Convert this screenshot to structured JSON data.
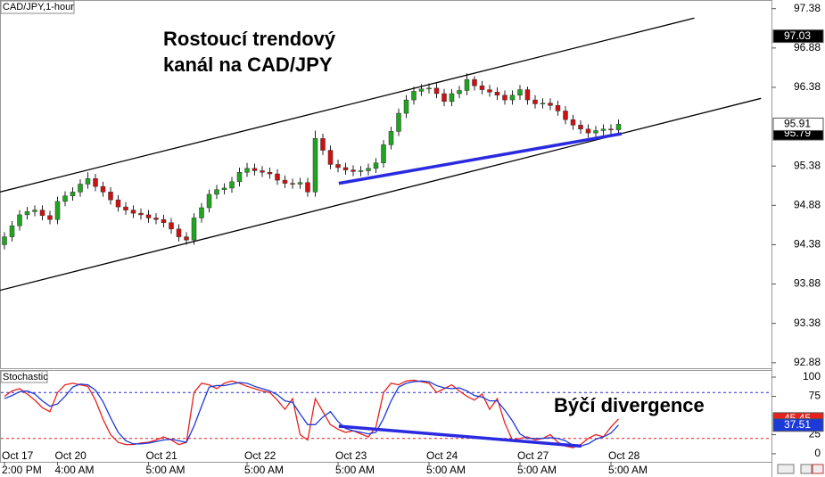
{
  "chart_data": [
    {
      "type": "candlestick",
      "title": "CAD/JPY,1-hour",
      "annotation_lines": [
        "Rostoucí trendový",
        "kanál na CAD/JPY"
      ],
      "categories": [
        "Oct 17",
        null,
        null,
        null,
        null,
        null,
        null,
        "Oct 20",
        null,
        null,
        null,
        null,
        null,
        null,
        null,
        null,
        null,
        null,
        null,
        "Oct 21",
        null,
        null,
        null,
        null,
        null,
        null,
        null,
        null,
        null,
        null,
        null,
        null,
        "Oct 22",
        null,
        null,
        null,
        null,
        null,
        null,
        null,
        null,
        null,
        null,
        null,
        "Oct 23",
        null,
        null,
        null,
        null,
        null,
        null,
        null,
        null,
        null,
        null,
        null,
        "Oct 24",
        null,
        null,
        null,
        null,
        null,
        null,
        null,
        null,
        null,
        null,
        null,
        "Oct 27",
        null,
        null,
        null,
        null,
        null,
        null,
        null,
        null,
        null,
        null,
        null,
        "Oct 28",
        null
      ],
      "category_times": [
        "2:00 PM",
        null,
        null,
        null,
        null,
        null,
        null,
        "4:00 AM",
        null,
        null,
        null,
        null,
        null,
        null,
        null,
        null,
        null,
        null,
        null,
        "5:00 AM",
        null,
        null,
        null,
        null,
        null,
        null,
        null,
        null,
        null,
        null,
        null,
        null,
        "5:00 AM",
        null,
        null,
        null,
        null,
        null,
        null,
        null,
        null,
        null,
        null,
        null,
        "5:00 AM",
        null,
        null,
        null,
        null,
        null,
        null,
        null,
        null,
        null,
        null,
        null,
        "5:00 AM",
        null,
        null,
        null,
        null,
        null,
        null,
        null,
        null,
        null,
        null,
        null,
        "5:00 AM",
        null,
        null,
        null,
        null,
        null,
        null,
        null,
        null,
        null,
        null,
        null,
        "5:00 AM",
        null
      ],
      "open": [
        94.38,
        94.48,
        94.62,
        94.76,
        94.8,
        94.82,
        94.75,
        94.7,
        94.93,
        95.0,
        95.05,
        95.15,
        95.22,
        95.12,
        95.05,
        94.95,
        94.86,
        94.82,
        94.78,
        94.76,
        94.72,
        94.7,
        94.66,
        94.58,
        94.48,
        94.44,
        94.72,
        94.85,
        95.02,
        95.08,
        95.1,
        95.18,
        95.3,
        95.35,
        95.32,
        95.3,
        95.28,
        95.2,
        95.16,
        95.15,
        95.17,
        95.05,
        95.73,
        95.58,
        95.4,
        95.36,
        95.33,
        95.31,
        95.32,
        95.35,
        95.42,
        95.65,
        95.82,
        96.05,
        96.22,
        96.33,
        96.36,
        96.37,
        96.3,
        96.2,
        96.3,
        96.34,
        96.48,
        96.4,
        96.35,
        96.32,
        96.28,
        96.22,
        96.28,
        96.35,
        96.22,
        96.17,
        96.18,
        96.15,
        96.08,
        95.97,
        95.9,
        95.85,
        95.8,
        95.83,
        95.85,
        95.84
      ],
      "high": [
        94.54,
        94.68,
        94.82,
        94.86,
        94.88,
        94.88,
        94.81,
        94.99,
        95.06,
        95.11,
        95.21,
        95.3,
        95.28,
        95.18,
        95.11,
        95.01,
        94.92,
        94.88,
        94.84,
        94.82,
        94.78,
        94.76,
        94.72,
        94.64,
        94.54,
        94.78,
        94.91,
        95.08,
        95.14,
        95.16,
        95.24,
        95.36,
        95.42,
        95.41,
        95.38,
        95.36,
        95.34,
        95.26,
        95.22,
        95.23,
        95.23,
        95.83,
        95.79,
        95.64,
        95.46,
        95.42,
        95.39,
        95.38,
        95.41,
        95.48,
        95.71,
        95.88,
        96.11,
        96.28,
        96.39,
        96.42,
        96.43,
        96.43,
        96.36,
        96.36,
        96.4,
        96.56,
        96.52,
        96.46,
        96.41,
        96.38,
        96.34,
        96.34,
        96.41,
        96.39,
        96.28,
        96.24,
        96.24,
        96.21,
        96.14,
        96.03,
        95.96,
        95.91,
        95.89,
        95.91,
        95.91,
        95.97
      ],
      "low": [
        94.32,
        94.42,
        94.56,
        94.7,
        94.74,
        94.69,
        94.64,
        94.64,
        94.87,
        94.94,
        94.99,
        95.09,
        95.06,
        94.99,
        94.89,
        94.8,
        94.76,
        94.72,
        94.7,
        94.66,
        94.64,
        94.6,
        94.52,
        94.42,
        94.38,
        94.38,
        94.66,
        94.79,
        94.96,
        95.02,
        95.04,
        95.12,
        95.24,
        95.26,
        95.24,
        95.22,
        95.14,
        95.1,
        95.09,
        95.09,
        94.99,
        94.99,
        95.52,
        95.34,
        95.3,
        95.27,
        95.25,
        95.25,
        95.26,
        95.29,
        95.36,
        95.59,
        95.76,
        95.99,
        96.16,
        96.27,
        96.3,
        96.24,
        96.14,
        96.14,
        96.24,
        96.28,
        96.34,
        96.29,
        96.26,
        96.22,
        96.16,
        96.16,
        96.22,
        96.16,
        96.11,
        96.11,
        96.09,
        96.02,
        95.91,
        95.84,
        95.79,
        95.74,
        95.74,
        95.77,
        95.78,
        95.78
      ],
      "close": [
        94.48,
        94.62,
        94.76,
        94.8,
        94.82,
        94.75,
        94.7,
        94.93,
        95.0,
        95.05,
        95.15,
        95.22,
        95.12,
        95.05,
        94.95,
        94.86,
        94.82,
        94.78,
        94.76,
        94.72,
        94.7,
        94.66,
        94.58,
        94.48,
        94.44,
        94.72,
        94.85,
        95.02,
        95.08,
        95.1,
        95.18,
        95.3,
        95.35,
        95.32,
        95.3,
        95.28,
        95.2,
        95.16,
        95.15,
        95.17,
        95.05,
        95.73,
        95.58,
        95.4,
        95.36,
        95.33,
        95.31,
        95.32,
        95.35,
        95.42,
        95.65,
        95.82,
        96.05,
        96.22,
        96.33,
        96.36,
        96.37,
        96.3,
        96.2,
        96.3,
        96.34,
        96.48,
        96.4,
        96.35,
        96.32,
        96.28,
        96.22,
        96.28,
        96.35,
        96.22,
        96.17,
        96.18,
        96.15,
        96.08,
        95.97,
        95.9,
        95.85,
        95.8,
        95.83,
        95.85,
        95.84,
        95.91
      ],
      "up_color": "#1fa51f",
      "down_color": "#d01010",
      "ylim": [
        92.81,
        97.49
      ],
      "yticks": [
        97.38,
        96.88,
        96.38,
        95.38,
        94.88,
        94.38,
        93.88,
        93.38,
        92.88
      ],
      "price_markers": [
        {
          "value": 97.03,
          "color": "#000000"
        },
        {
          "value": 95.79,
          "color": "#000000"
        }
      ],
      "trendlines": [
        {
          "x": [
            -0.6,
            91
          ],
          "y": [
            95.05,
            97.26
          ],
          "color": "#000000"
        },
        {
          "x": [
            -0.6,
            99.8
          ],
          "y": [
            93.8,
            96.24
          ],
          "color": "#000000"
        },
        {
          "x": [
            44.1,
            81.4
          ],
          "y": [
            95.16,
            95.79
          ],
          "color": "#2a2ae0"
        }
      ]
    },
    {
      "type": "line",
      "title": "Stochastic",
      "annotation": "Býčí divergence",
      "series": [
        {
          "color": "#e8201c",
          "values": [
            75,
            82,
            85,
            78,
            70,
            60,
            55,
            80,
            90,
            92,
            90,
            88,
            70,
            45,
            25,
            15,
            12,
            12,
            14,
            15,
            18,
            22,
            18,
            12,
            15,
            80,
            92,
            90,
            85,
            92,
            95,
            92,
            88,
            85,
            82,
            80,
            70,
            58,
            72,
            25,
            18,
            72,
            55,
            38,
            32,
            28,
            30,
            26,
            22,
            35,
            80,
            92,
            90,
            95,
            96,
            94,
            92,
            80,
            85,
            90,
            82,
            75,
            70,
            78,
            58,
            72,
            40,
            18,
            20,
            22,
            18,
            20,
            25,
            15,
            10,
            8,
            12,
            20,
            25,
            22,
            35,
            45.45
          ]
        },
        {
          "color": "#1c3ad8",
          "values": [
            72,
            76,
            81,
            82,
            78,
            69,
            62,
            65,
            75,
            87,
            91,
            90,
            83,
            68,
            47,
            28,
            17,
            13,
            13,
            14,
            16,
            18,
            19,
            17,
            15,
            36,
            62,
            87,
            89,
            89,
            91,
            93,
            92,
            88,
            85,
            82,
            77,
            69,
            67,
            52,
            38,
            38,
            48,
            55,
            42,
            33,
            30,
            28,
            26,
            28,
            46,
            69,
            87,
            92,
            94,
            95,
            94,
            89,
            86,
            85,
            86,
            82,
            76,
            74,
            69,
            69,
            57,
            43,
            26,
            20,
            20,
            20,
            21,
            20,
            17,
            11,
            10,
            13,
            19,
            22,
            27,
            37.51
          ]
        }
      ],
      "ylim": [
        -10.5,
        109.3
      ],
      "yticks": [
        100,
        75,
        25,
        0
      ],
      "levels": [
        {
          "value": 80,
          "color": "#2a2ae0"
        },
        {
          "value": 20,
          "color": "#e02020"
        }
      ],
      "trendlines": [
        {
          "x": [
            44.1,
            76.1
          ],
          "y": [
            36,
            10
          ],
          "color": "#2a2ae0"
        }
      ]
    }
  ]
}
